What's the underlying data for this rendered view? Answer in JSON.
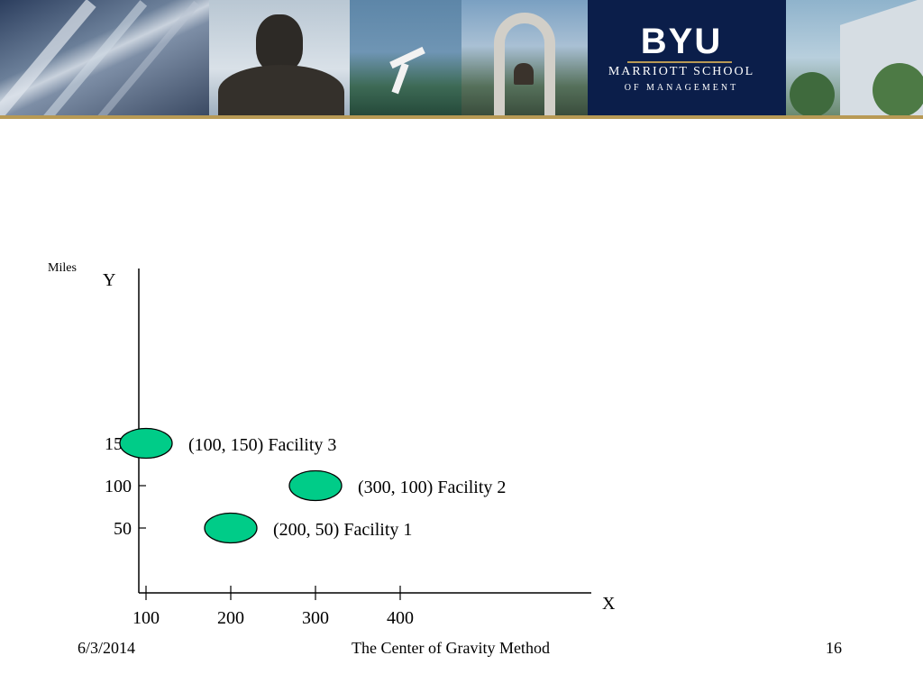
{
  "header": {
    "logo_title": "BYU",
    "logo_school": "MARRIOTT SCHOOL",
    "logo_management": "OF MANAGEMENT",
    "banner_color": "#0b1e4a",
    "accent_color": "#b89a55"
  },
  "chart_data": {
    "type": "scatter",
    "units_label": "Miles",
    "xlabel": "X",
    "ylabel": "Y",
    "x_ticks": [
      100,
      200,
      300,
      400
    ],
    "y_ticks": [
      50,
      100,
      150
    ],
    "x_tick_labels": [
      "100",
      "200",
      "300",
      "400"
    ],
    "y_tick_labels": [
      "50",
      "100",
      "150"
    ],
    "xlim": [
      0,
      500
    ],
    "ylim": [
      0,
      175
    ],
    "grid": false,
    "marker_color": "#00cc88",
    "points": [
      {
        "x": 100,
        "y": 150,
        "label": "(100, 150) Facility 3"
      },
      {
        "x": 300,
        "y": 100,
        "label": "(300, 100) Facility 2"
      },
      {
        "x": 200,
        "y": 50,
        "label": "(200, 50) Facility 1"
      }
    ]
  },
  "footer": {
    "date": "6/3/2014",
    "title": "The Center of Gravity Method",
    "page": "16"
  }
}
